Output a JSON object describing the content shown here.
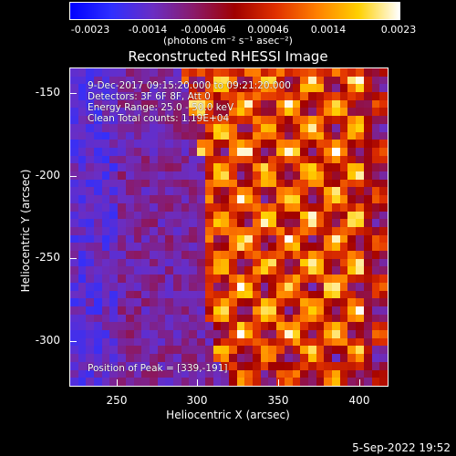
{
  "colorbar": {
    "gradient": [
      "#0000ff",
      "#2f2fff",
      "#6a2ec4",
      "#8a1a6a",
      "#a00000",
      "#e03000",
      "#ff8000",
      "#ffd000",
      "#ffffff"
    ],
    "ticks": [
      "-0.0023",
      "-0.0014",
      "-0.00046",
      "0.00046",
      "0.0014",
      "0.0023"
    ],
    "units": "(photons cm⁻² s⁻¹ asec⁻²)"
  },
  "title": "Reconstructed RHESSI Image",
  "overlay": {
    "time_range": "9-Dec-2017 09:15:20.000 to 09:21:20.000",
    "detectors": "Detectors: 3F 6F 8F, Att 0",
    "energy": "Energy Range: 25.0 - 50.0 keV",
    "clean": "Clean    Total counts: 1.19E+04",
    "peak": "Position of Peak = [339,-191]"
  },
  "axes": {
    "xlabel": "Heliocentric X (arcsec)",
    "ylabel": "Heliocentric Y (arcsec)",
    "xticks": [
      "250",
      "300",
      "350",
      "400"
    ],
    "yticks": [
      "-150",
      "-200",
      "-250",
      "-300"
    ]
  },
  "footer": {
    "date": "5-Sep-2022 19:52"
  },
  "chart_data": {
    "type": "heatmap",
    "title": "Reconstructed RHESSI Image",
    "xlabel": "Heliocentric X (arcsec)",
    "ylabel": "Heliocentric Y (arcsec)",
    "xlim": [
      220,
      411
    ],
    "ylim": [
      -326,
      -136
    ],
    "colorbar_range": [
      -0.0023,
      0.0023
    ],
    "peak": [
      339,
      -191
    ]
  }
}
